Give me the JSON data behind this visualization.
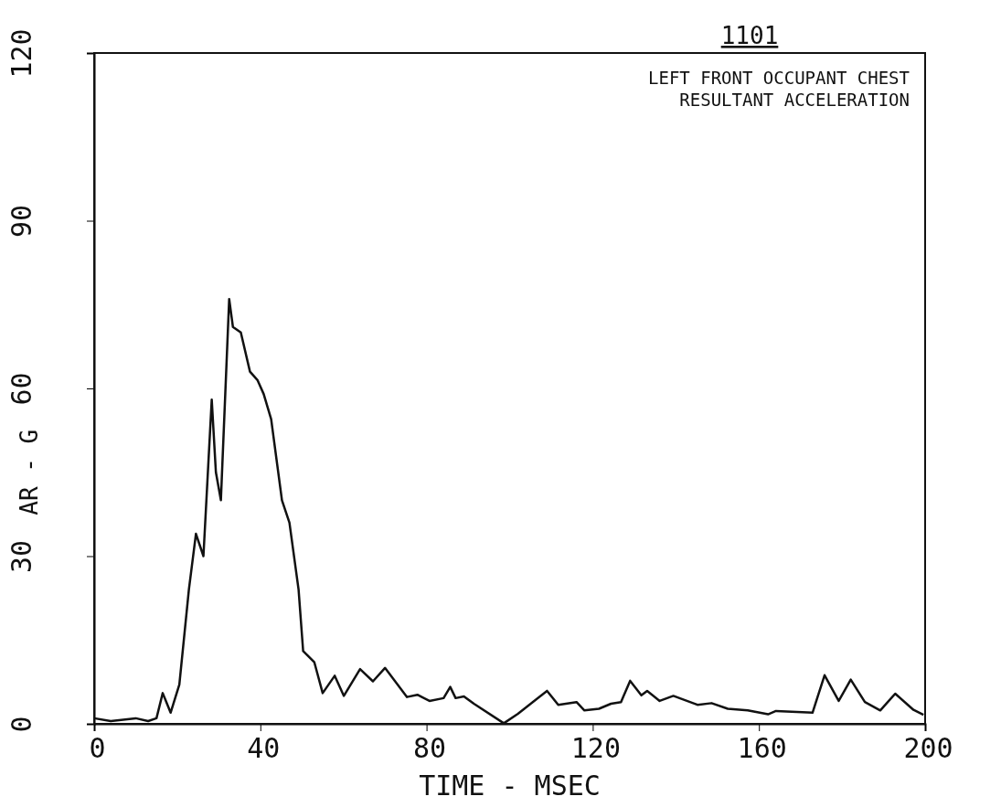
{
  "chart_data": {
    "type": "line",
    "title": "1101",
    "annotations": [
      "LEFT FRONT OCCUPANT CHEST",
      "RESULTANT ACCELERATION"
    ],
    "xlabel": "TIME - MSEC",
    "ylabel": "AR - G",
    "xlim": [
      0,
      200
    ],
    "xticks": [
      0,
      40,
      80,
      120,
      160,
      200
    ],
    "ylim": [
      0,
      120
    ],
    "yticks": [
      0,
      30,
      60,
      90,
      120
    ],
    "line_style": "solid",
    "marker": "none",
    "series": [
      {
        "color": "#111111",
        "x": [
          0,
          4,
          10,
          13,
          15,
          16.5,
          18.4,
          20.5,
          22.8,
          24.5,
          26.3,
          28.3,
          29.3,
          30.5,
          32.5,
          33.4,
          35.3,
          37.5,
          39.3,
          40.8,
          42.6,
          45.2,
          47,
          49.2,
          50.3,
          53,
          55,
          57.9,
          60.1,
          64,
          67.1,
          70,
          75.3,
          77.8,
          80.7,
          84.1,
          85.7,
          87,
          89,
          91.4,
          98.6,
          102,
          109,
          111.7,
          116.1,
          118,
          121.5,
          124.4,
          126.8,
          129,
          131.7,
          133.1,
          136.1,
          139.4,
          145.2,
          148.6,
          152.5,
          157.3,
          162.2,
          164.1,
          172.9,
          175.8,
          179.2,
          182.1,
          185.5,
          189.2,
          192.8,
          197.2,
          199.6
        ],
        "values": [
          1,
          0.5,
          1,
          0.5,
          1,
          5.5,
          2,
          7,
          24,
          34,
          30,
          58,
          45,
          40,
          76,
          71,
          70,
          63,
          61.5,
          59,
          54.5,
          40,
          36,
          24,
          13,
          11,
          5.5,
          8.6,
          5,
          9.8,
          7.6,
          10,
          4.8,
          5.2,
          4.1,
          4.6,
          6.6,
          4.6,
          4.9,
          3.6,
          0.1,
          1.8,
          5.9,
          3.4,
          3.9,
          2.4,
          2.7,
          3.6,
          3.9,
          7.7,
          5.1,
          5.9,
          4.1,
          5,
          3.4,
          3.7,
          2.7,
          2.4,
          1.7,
          2.3,
          2,
          8.7,
          4.1,
          7.9,
          3.9,
          2.4,
          5.4,
          2.5,
          1.6
        ]
      }
    ]
  }
}
